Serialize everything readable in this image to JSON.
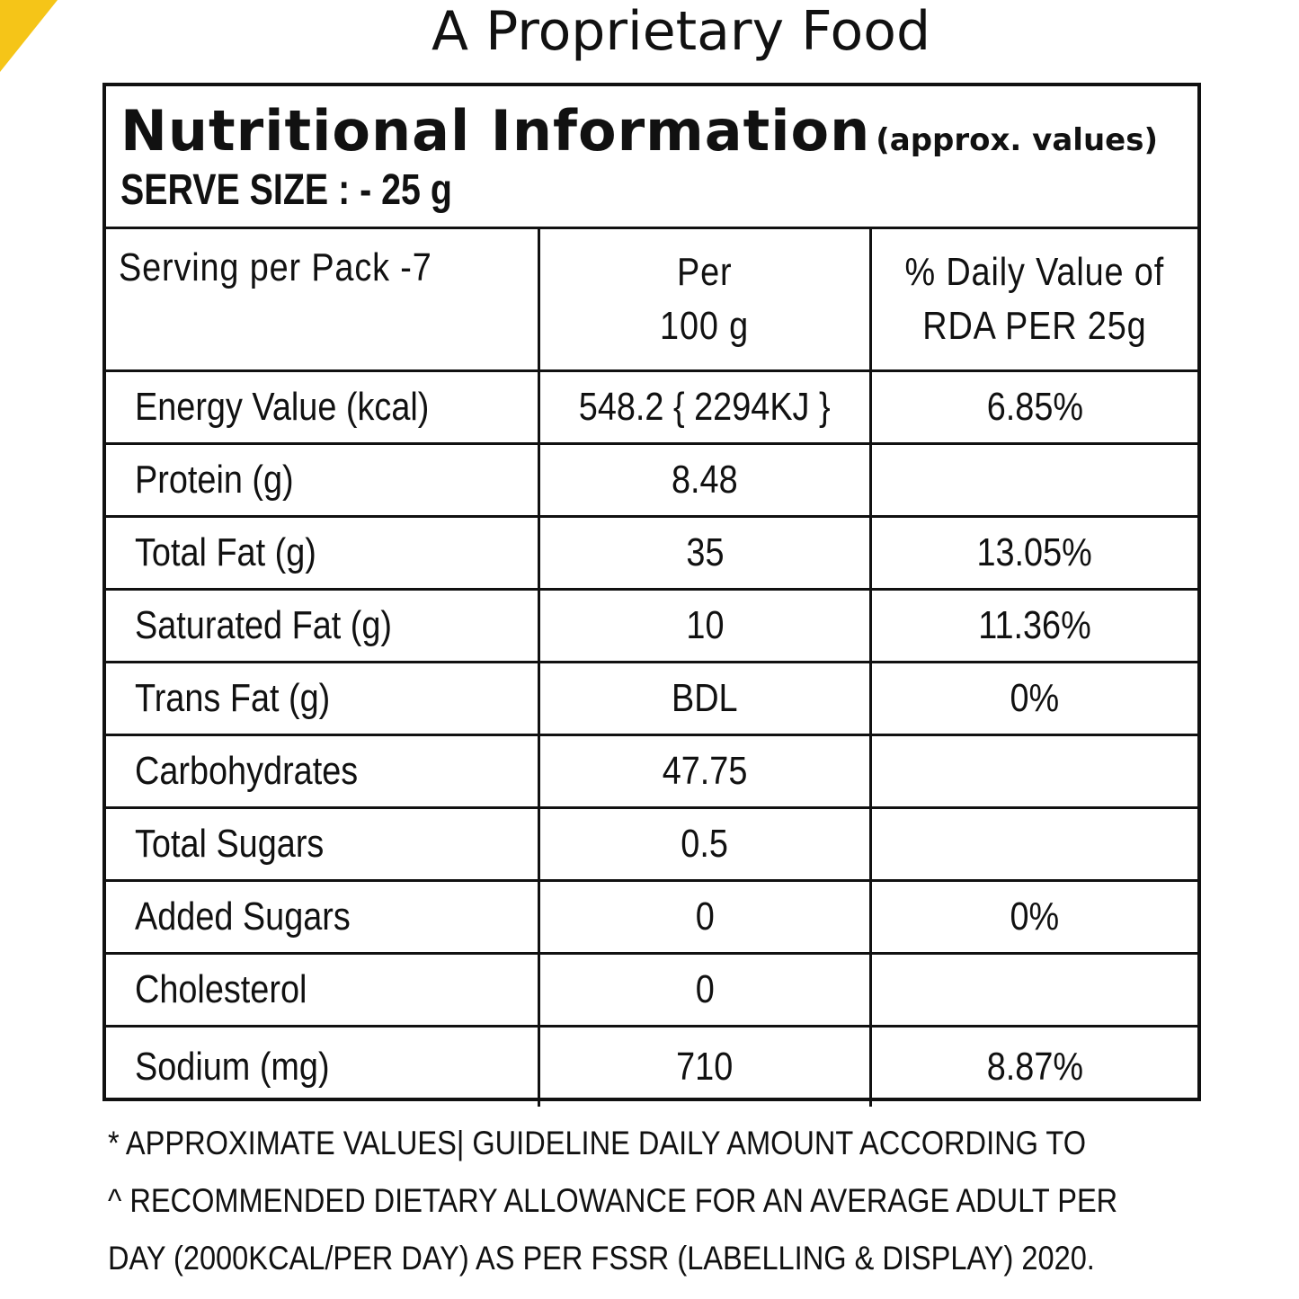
{
  "colors": {
    "corner_accent": "#f5c518",
    "ink": "#111111",
    "background": "#ffffff"
  },
  "product_type": "A Proprietary Food",
  "label": {
    "title": "Nutritional Information",
    "title_note": "(approx. values)",
    "serve_size": "SERVE SIZE : - 25 g",
    "columns": {
      "serving_per_pack": "Serving per Pack -7",
      "per_100g_line1": "Per",
      "per_100g_line2": "100 g",
      "rda_line1": "% Daily Value of",
      "rda_line2": "RDA PER 25g"
    },
    "rows": [
      {
        "nutrient": "Energy Value (kcal)",
        "per_100g": "548.2 { 2294KJ }",
        "rda": "6.85%"
      },
      {
        "nutrient": "Protein (g)",
        "per_100g": "8.48",
        "rda": ""
      },
      {
        "nutrient": "Total Fat (g)",
        "per_100g": "35",
        "rda": "13.05%"
      },
      {
        "nutrient": "Saturated Fat (g)",
        "per_100g": "10",
        "rda": "11.36%"
      },
      {
        "nutrient": "Trans Fat (g)",
        "per_100g": "BDL",
        "rda": "0%"
      },
      {
        "nutrient": "Carbohydrates",
        "per_100g": "47.75",
        "rda": ""
      },
      {
        "nutrient": "Total Sugars",
        "per_100g": "0.5",
        "rda": ""
      },
      {
        "nutrient": "Added Sugars",
        "per_100g": "0",
        "rda": "0%"
      },
      {
        "nutrient": "Cholesterol",
        "per_100g": "0",
        "rda": ""
      },
      {
        "nutrient": "Sodium (mg)",
        "per_100g": "710",
        "rda": "8.87%"
      }
    ]
  },
  "footnote": {
    "line1": "* APPROXIMATE VALUES| GUIDELINE DAILY AMOUNT ACCORDING TO",
    "line2": "^ RECOMMENDED DIETARY ALLOWANCE FOR AN AVERAGE ADULT PER",
    "line3": "DAY (2000KCAL/PER DAY) AS PER FSSR (LABELLING & DISPLAY) 2020."
  }
}
